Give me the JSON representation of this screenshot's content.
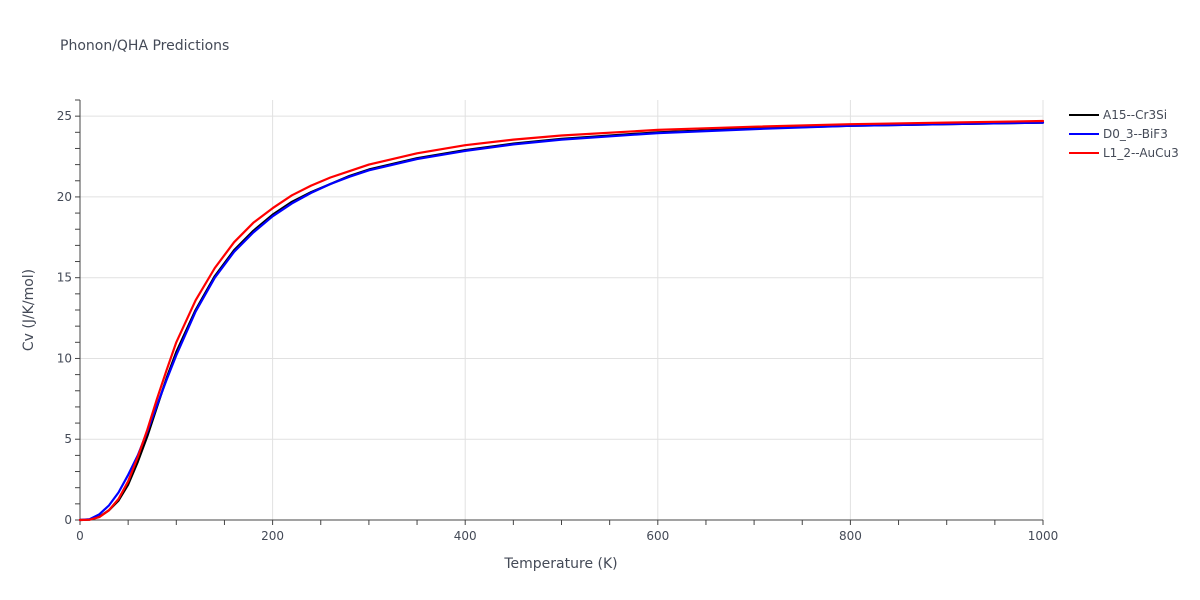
{
  "chart_data": {
    "type": "line",
    "title": "Phonon/QHA Predictions",
    "xlabel": "Temperature (K)",
    "ylabel": "Cv (J/K/mol)",
    "xlim": [
      0,
      1000
    ],
    "ylim": [
      0,
      26
    ],
    "x_ticks": [
      0,
      200,
      400,
      600,
      800,
      1000
    ],
    "y_ticks": [
      0,
      5,
      10,
      15,
      20,
      25
    ],
    "grid": true,
    "legend_position": "top-right",
    "series": [
      {
        "name": "A15--Cr3Si",
        "color": "#000000",
        "x": [
          0,
          10,
          20,
          30,
          40,
          50,
          60,
          70,
          80,
          90,
          100,
          120,
          140,
          160,
          180,
          200,
          220,
          240,
          260,
          280,
          300,
          350,
          400,
          450,
          500,
          600,
          700,
          800,
          900,
          1000
        ],
        "y": [
          0,
          0.02,
          0.2,
          0.6,
          1.2,
          2.2,
          3.6,
          5.2,
          7.0,
          8.8,
          10.4,
          13.0,
          15.1,
          16.7,
          17.9,
          18.9,
          19.7,
          20.3,
          20.8,
          21.3,
          21.7,
          22.4,
          22.9,
          23.3,
          23.6,
          24.0,
          24.25,
          24.4,
          24.5,
          24.6
        ]
      },
      {
        "name": "D0_3--BiF3",
        "color": "#0000ff",
        "x": [
          0,
          10,
          20,
          30,
          40,
          50,
          60,
          70,
          80,
          90,
          100,
          120,
          140,
          160,
          180,
          200,
          220,
          240,
          260,
          280,
          300,
          350,
          400,
          450,
          500,
          600,
          700,
          800,
          900,
          1000
        ],
        "y": [
          0,
          0.05,
          0.35,
          0.9,
          1.7,
          2.8,
          4.0,
          5.5,
          7.1,
          8.7,
          10.2,
          12.9,
          15.0,
          16.6,
          17.8,
          18.8,
          19.6,
          20.25,
          20.8,
          21.25,
          21.65,
          22.35,
          22.85,
          23.25,
          23.55,
          23.95,
          24.2,
          24.4,
          24.5,
          24.6
        ]
      },
      {
        "name": "L1_2--AuCu3",
        "color": "#ff0000",
        "x": [
          0,
          10,
          20,
          30,
          40,
          50,
          60,
          70,
          80,
          90,
          100,
          120,
          140,
          160,
          180,
          200,
          220,
          240,
          260,
          280,
          300,
          350,
          400,
          450,
          500,
          600,
          700,
          800,
          900,
          1000
        ],
        "y": [
          0,
          0.02,
          0.18,
          0.6,
          1.3,
          2.4,
          3.9,
          5.6,
          7.5,
          9.3,
          11.0,
          13.6,
          15.6,
          17.2,
          18.4,
          19.3,
          20.1,
          20.7,
          21.2,
          21.6,
          22.0,
          22.7,
          23.2,
          23.55,
          23.8,
          24.15,
          24.35,
          24.5,
          24.6,
          24.7
        ]
      }
    ]
  }
}
